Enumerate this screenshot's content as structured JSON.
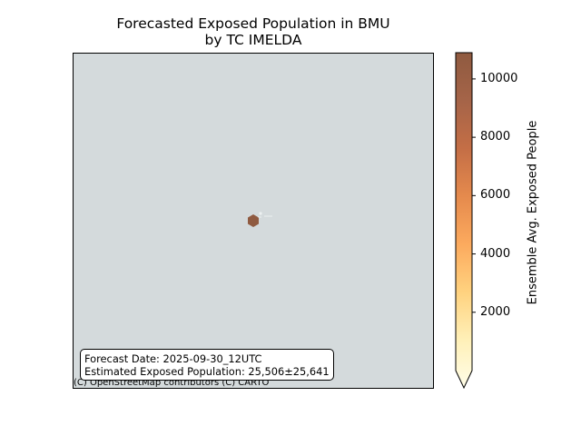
{
  "title": {
    "line1": "Forecasted Exposed Population in BMU",
    "line2": "by TC IMELDA"
  },
  "map": {
    "background_color": "#d4dadc",
    "exposure_cell": {
      "color": "#8f5a40",
      "value_level": "max"
    },
    "attribution": "(C) OpenStreetMap contributors (C) CARTO"
  },
  "info_box": {
    "forecast_date": "Forecast Date: 2025-09-30_12UTC",
    "exposed_population": "Estimated Exposed Population: 25,506±25,641"
  },
  "colorbar": {
    "label": "Ensemble Avg. Exposed People",
    "min": 0,
    "max": 10900,
    "extend": "min",
    "colormap_stops": [
      "#fffde8",
      "#fff0b8",
      "#ffd27f",
      "#fcaa5e",
      "#e58a4d",
      "#c46e46",
      "#a56448",
      "#8f5a40"
    ],
    "ticks": [
      {
        "value": 2000,
        "label": "2000"
      },
      {
        "value": 4000,
        "label": "4000"
      },
      {
        "value": 6000,
        "label": "6000"
      },
      {
        "value": 8000,
        "label": "8000"
      },
      {
        "value": 10000,
        "label": "10000"
      }
    ]
  }
}
